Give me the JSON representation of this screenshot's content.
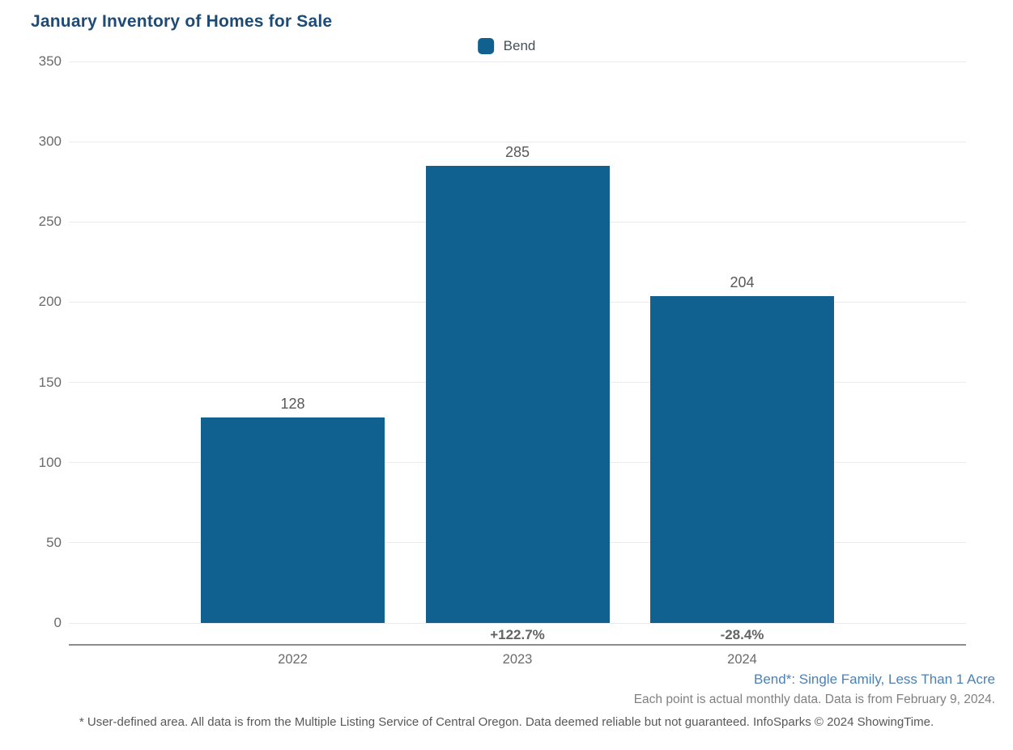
{
  "title": "January Inventory of Homes for Sale",
  "legend": {
    "label": "Bend",
    "swatch_color": "#10618f"
  },
  "chart_data": {
    "type": "bar",
    "title": "January Inventory of Homes for Sale",
    "categories": [
      "2022",
      "2023",
      "2024"
    ],
    "series": [
      {
        "name": "Bend",
        "values": [
          128,
          285,
          204
        ],
        "color": "#10618f"
      }
    ],
    "value_labels": [
      "128",
      "285",
      "204"
    ],
    "pct_change_labels": [
      "",
      "+122.7%",
      "-28.4%"
    ],
    "xlabel": "",
    "ylabel": "",
    "ylim": [
      0,
      350
    ],
    "yticks": [
      0,
      50,
      100,
      150,
      200,
      250,
      300,
      350
    ],
    "grid": true,
    "legend_position": "top-center"
  },
  "footer": {
    "series_note": "Bend*: Single Family, Less Than 1 Acre",
    "data_note": "Each point is actual monthly data. Data is from February 9, 2024.",
    "disclaimer": "* User-defined area. All data is from the Multiple Listing Service of Central Oregon. Data deemed reliable but not guaranteed. InfoSparks © 2024 ShowingTime."
  },
  "colors": {
    "bar": "#10618f",
    "title_text": "#1d4b76",
    "axis_text": "#6b6b6b",
    "value_text": "#58595b",
    "pct_text": "#646464",
    "series_note_text": "#4d80b2",
    "data_note_text": "#808080",
    "disclaimer_text": "#585858",
    "gridline": "#ebebeb",
    "axis_line": "#8c8c8c"
  }
}
